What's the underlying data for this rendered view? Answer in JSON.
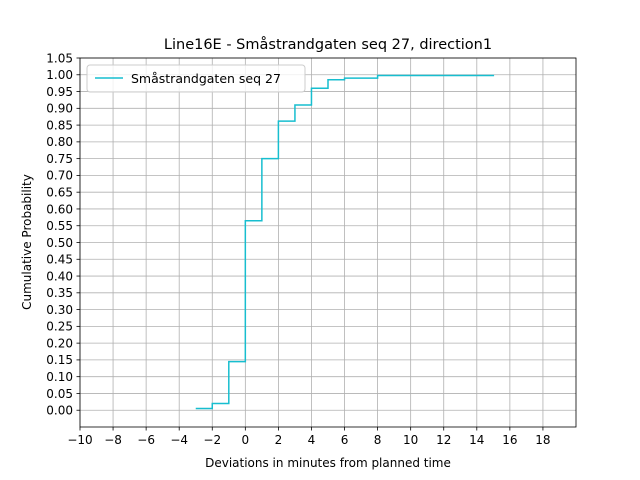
{
  "chart_data": {
    "type": "line",
    "title": "Line16E - Småstrandgaten seq 27, direction1",
    "xlabel": "Deviations in minutes from planned time",
    "ylabel": "Cumulative Probability",
    "xlim": [
      -10,
      20
    ],
    "ylim": [
      -0.05,
      1.05
    ],
    "x_ticks": [
      -10,
      -8,
      -6,
      -4,
      -2,
      0,
      2,
      4,
      6,
      8,
      10,
      12,
      14,
      16,
      18
    ],
    "x_tick_labels": [
      "−10",
      "−8",
      "−6",
      "−4",
      "−2",
      "0",
      "2",
      "4",
      "6",
      "8",
      "10",
      "12",
      "14",
      "16",
      "18"
    ],
    "y_ticks": [
      0.0,
      0.05,
      0.1,
      0.15,
      0.2,
      0.25,
      0.3,
      0.35,
      0.4,
      0.45,
      0.5,
      0.55,
      0.6,
      0.65,
      0.7,
      0.75,
      0.8,
      0.85,
      0.9,
      0.95,
      1.0,
      1.05
    ],
    "y_tick_labels": [
      "0.00",
      "0.05",
      "0.10",
      "0.15",
      "0.20",
      "0.25",
      "0.30",
      "0.35",
      "0.40",
      "0.45",
      "0.50",
      "0.55",
      "0.60",
      "0.65",
      "0.70",
      "0.75",
      "0.80",
      "0.85",
      "0.90",
      "0.95",
      "1.00",
      "1.05"
    ],
    "grid": true,
    "legend_position": "top-left",
    "series": [
      {
        "name": "Småstrandgaten seq 27",
        "color": "#17becf",
        "step": "post",
        "points": [
          [
            -3,
            0.005
          ],
          [
            -2,
            0.02
          ],
          [
            -1,
            0.145
          ],
          [
            0,
            0.565
          ],
          [
            1,
            0.75
          ],
          [
            2,
            0.862
          ],
          [
            3,
            0.91
          ],
          [
            4,
            0.96
          ],
          [
            5,
            0.985
          ],
          [
            6,
            0.99
          ],
          [
            8,
            0.998
          ],
          [
            15,
            1.0
          ]
        ]
      }
    ]
  }
}
